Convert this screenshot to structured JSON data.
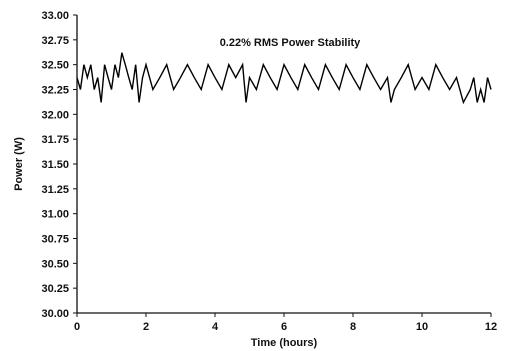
{
  "chart_data": {
    "type": "line",
    "title": "",
    "annotation": "0.22% RMS Power Stability",
    "xlabel": "Time (hours)",
    "ylabel": "Power (W)",
    "xlim": [
      0,
      12
    ],
    "ylim": [
      30.0,
      33.0
    ],
    "x_ticks": [
      0,
      2,
      4,
      6,
      8,
      10,
      12
    ],
    "x_tick_labels": [
      "0",
      "2",
      "4",
      "6",
      "8",
      "10",
      "12"
    ],
    "y_ticks": [
      30.0,
      30.25,
      30.5,
      30.75,
      31.0,
      31.25,
      31.5,
      31.75,
      32.0,
      32.25,
      32.5,
      32.75,
      33.0
    ],
    "y_tick_labels": [
      "30.00",
      "30.25",
      "30.50",
      "30.75",
      "31.00",
      "31.25",
      "31.50",
      "31.75",
      "32.00",
      "32.25",
      "32.50",
      "32.75",
      "33.00"
    ],
    "grid": false,
    "series": [
      {
        "color": "#000000",
        "x": [
          0.0,
          0.1,
          0.2,
          0.3,
          0.4,
          0.5,
          0.6,
          0.7,
          0.8,
          0.9,
          1.0,
          1.1,
          1.2,
          1.3,
          1.4,
          1.5,
          1.6,
          1.7,
          1.8,
          1.9,
          2.0,
          2.2,
          2.4,
          2.6,
          2.8,
          3.0,
          3.2,
          3.4,
          3.6,
          3.8,
          4.0,
          4.2,
          4.4,
          4.6,
          4.8,
          4.9,
          5.0,
          5.2,
          5.4,
          5.6,
          5.8,
          6.0,
          6.2,
          6.4,
          6.6,
          6.8,
          7.0,
          7.2,
          7.4,
          7.6,
          7.8,
          8.0,
          8.2,
          8.4,
          8.6,
          8.8,
          9.0,
          9.1,
          9.2,
          9.4,
          9.6,
          9.8,
          10.0,
          10.2,
          10.4,
          10.6,
          10.8,
          11.0,
          11.2,
          11.4,
          11.5,
          11.6,
          11.7,
          11.8,
          11.9,
          12.0
        ],
        "y": [
          32.37,
          32.25,
          32.5,
          32.37,
          32.5,
          32.25,
          32.37,
          32.12,
          32.5,
          32.37,
          32.25,
          32.5,
          32.37,
          32.62,
          32.5,
          32.37,
          32.25,
          32.5,
          32.12,
          32.37,
          32.5,
          32.25,
          32.37,
          32.5,
          32.25,
          32.37,
          32.5,
          32.37,
          32.25,
          32.5,
          32.37,
          32.25,
          32.5,
          32.37,
          32.5,
          32.12,
          32.37,
          32.25,
          32.5,
          32.37,
          32.25,
          32.5,
          32.37,
          32.25,
          32.5,
          32.37,
          32.25,
          32.5,
          32.37,
          32.25,
          32.5,
          32.37,
          32.25,
          32.5,
          32.37,
          32.25,
          32.37,
          32.12,
          32.25,
          32.37,
          32.5,
          32.25,
          32.37,
          32.25,
          32.5,
          32.37,
          32.25,
          32.37,
          32.12,
          32.25,
          32.37,
          32.12,
          32.25,
          32.12,
          32.37,
          32.25
        ]
      }
    ]
  }
}
